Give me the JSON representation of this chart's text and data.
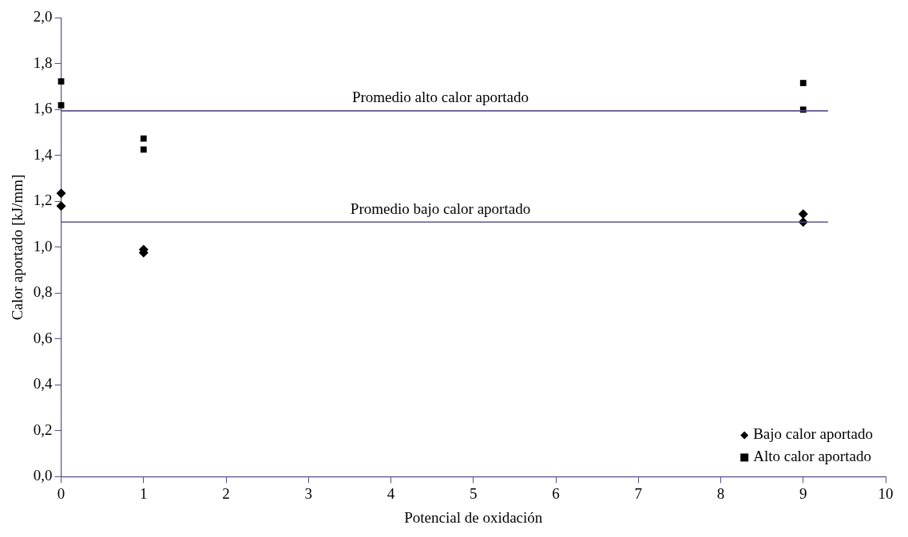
{
  "chart_data": {
    "type": "scatter",
    "xlabel": "Potencial de oxidación",
    "ylabel": "Calor aportado [kJ/mm]",
    "xlim": [
      0,
      10
    ],
    "xticks": [
      0,
      1,
      2,
      3,
      4,
      5,
      6,
      7,
      8,
      9,
      10
    ],
    "ylim": [
      0,
      2
    ],
    "yticks": [
      {
        "value": 0,
        "label": "0,0"
      },
      {
        "value": 0.2,
        "label": "0,2"
      },
      {
        "value": 0.4,
        "label": "0,4"
      },
      {
        "value": 0.6,
        "label": "0,6"
      },
      {
        "value": 0.8,
        "label": "0,8"
      },
      {
        "value": 1,
        "label": "1,0"
      },
      {
        "value": 1.2,
        "label": "1,2"
      },
      {
        "value": 1.4,
        "label": "1,4"
      },
      {
        "value": 1.6,
        "label": "1,6"
      },
      {
        "value": 1.8,
        "label": "1,8"
      },
      {
        "value": 2,
        "label": "2,0"
      }
    ],
    "grid": false,
    "legend": "bottom right",
    "series": [
      {
        "name": "Bajo calor aportado",
        "color": "#000000",
        "marker": "diamond",
        "x": [
          0,
          0,
          1,
          1,
          9,
          9
        ],
        "values": [
          1.235,
          1.18,
          0.99,
          0.976,
          1.145,
          1.11
        ]
      },
      {
        "name": "Alto calor aportado",
        "color": "#000000",
        "marker": "square",
        "x": [
          0,
          0,
          1,
          1,
          9,
          9
        ],
        "values": [
          1.723,
          1.619,
          1.474,
          1.426,
          1.716,
          1.6
        ]
      }
    ],
    "ref_lines": [
      {
        "axis": "y",
        "value": 1.595,
        "label": "Promedio alto calor aportado",
        "color": "#5b4b8a"
      },
      {
        "axis": "y",
        "value": 1.11,
        "label": "Promedio bajo calor aportado",
        "color": "#5b4b8a"
      }
    ]
  }
}
